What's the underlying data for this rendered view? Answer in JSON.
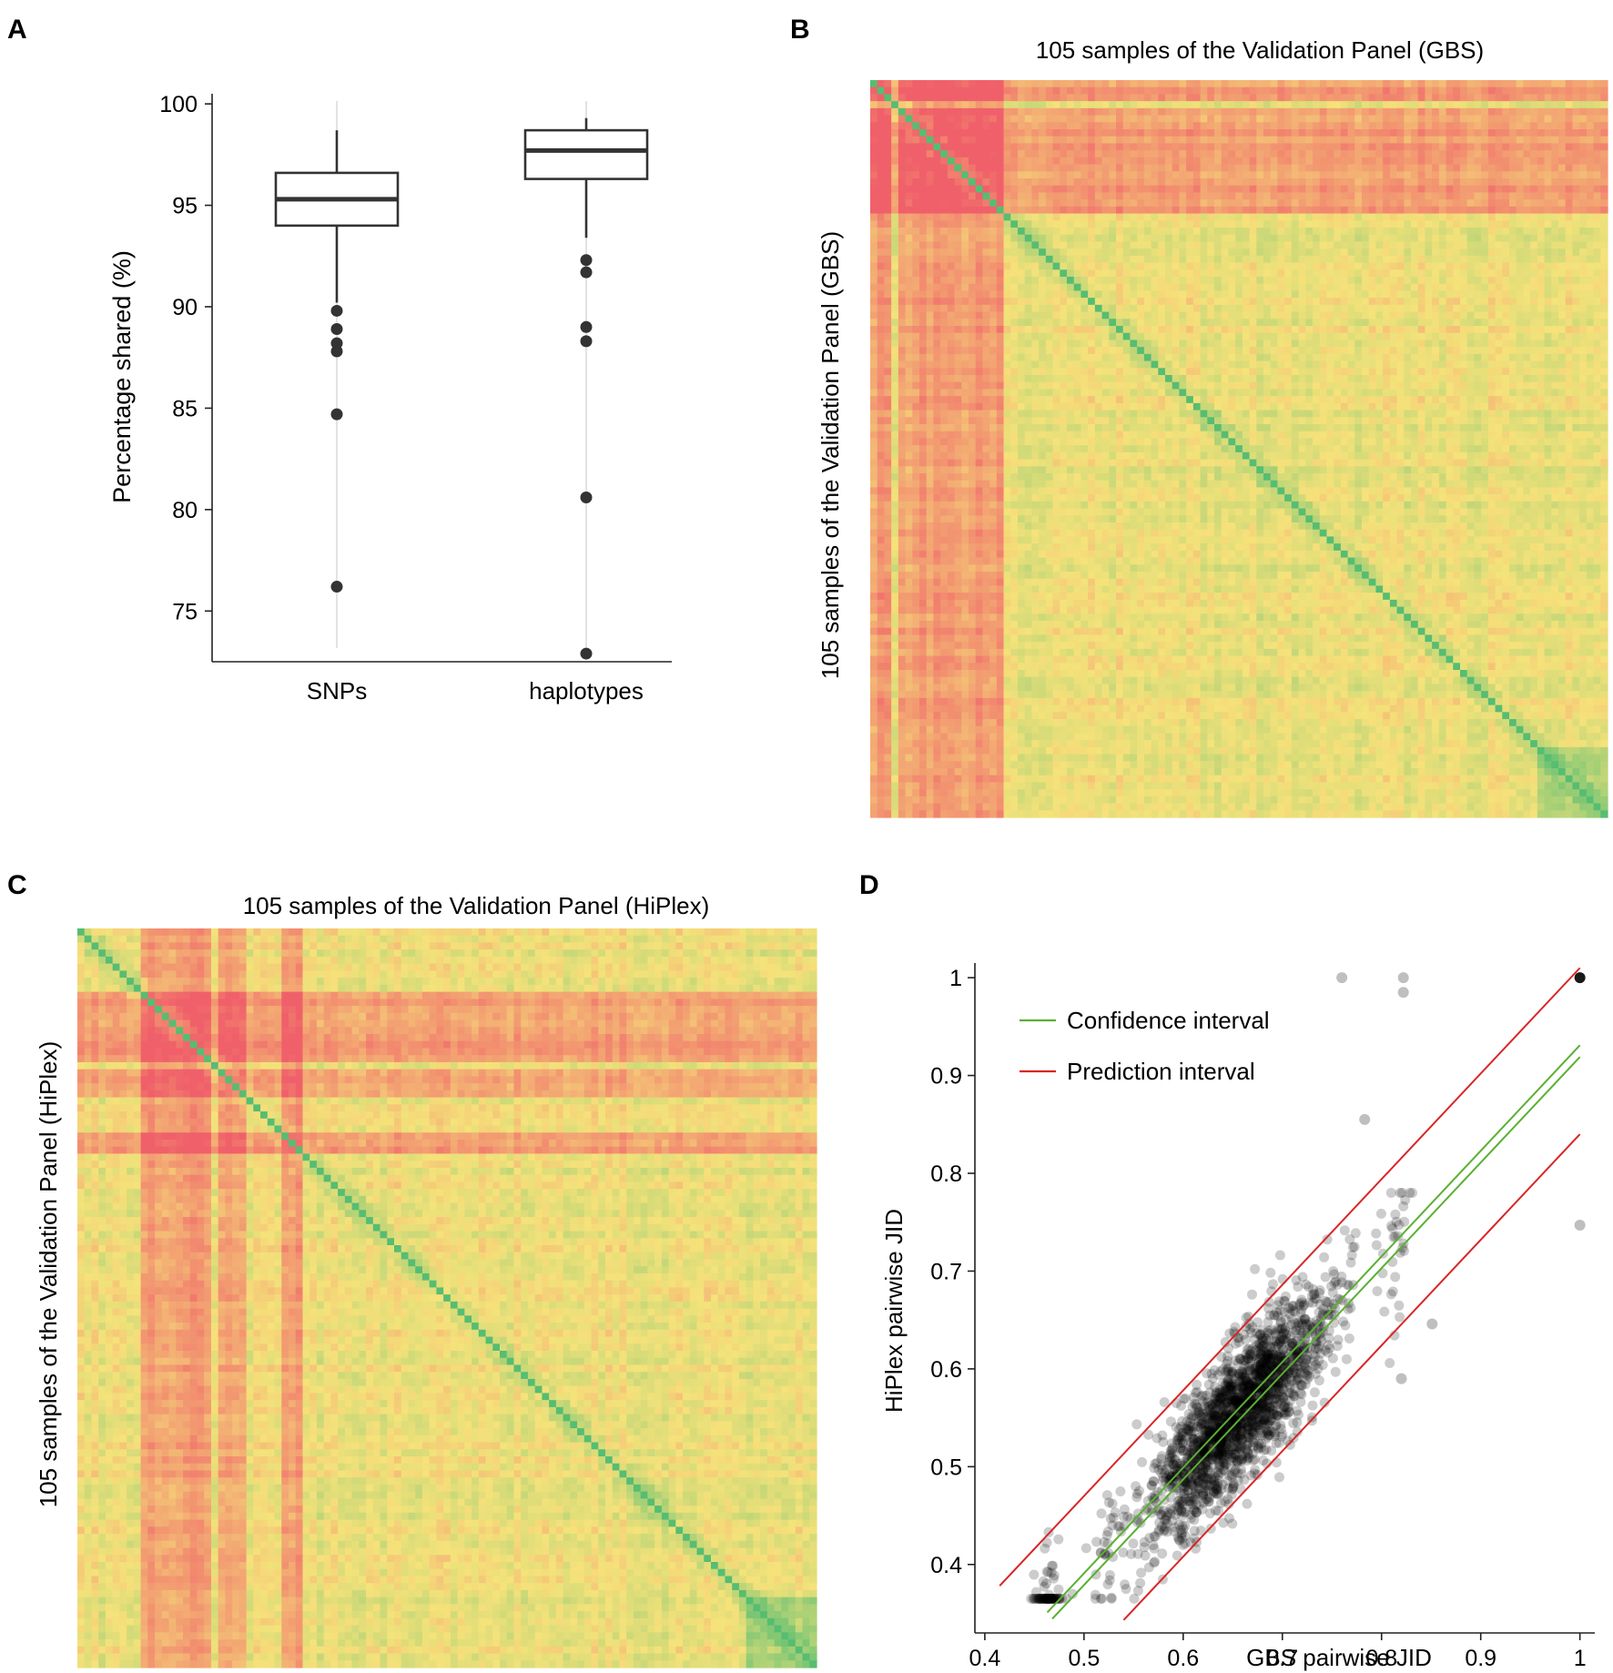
{
  "panel_labels": [
    "A",
    "B",
    "C",
    "D"
  ],
  "colors": {
    "axis": "#222222",
    "box": "#333333",
    "whisker_bg": "#e3e3e3",
    "heat_low": "#f0606a",
    "heat_mid": "#f5e27a",
    "heat_high": "#56bd72",
    "points": "#000000",
    "confidence": "#5ab031",
    "prediction": "#d92525"
  },
  "chart_data": [
    {
      "id": "A",
      "type": "box",
      "title": "",
      "ylabel": "Percentage shared (%)",
      "xlabel": "",
      "ylim": [
        72.5,
        100.5
      ],
      "yticks": [
        75,
        80,
        85,
        90,
        95,
        100
      ],
      "categories": [
        "SNPs",
        "haplotypes"
      ],
      "boxes": [
        {
          "name": "SNPs",
          "q1": 94.0,
          "median": 95.3,
          "q3": 96.6,
          "whisker_low": 90.2,
          "whisker_high": 98.7,
          "outliers": [
            89.8,
            88.9,
            88.2,
            87.8,
            84.7,
            76.2
          ]
        },
        {
          "name": "haplotypes",
          "q1": 96.3,
          "median": 97.7,
          "q3": 98.7,
          "whisker_low": 93.4,
          "whisker_high": 99.3,
          "outliers": [
            92.3,
            91.7,
            89.0,
            88.3,
            80.6,
            72.9
          ]
        }
      ]
    },
    {
      "id": "B",
      "type": "heatmap",
      "title": "105 samples of the Validation Panel (GBS)",
      "ylabel": "105 samples of the Validation Panel (GBS)",
      "n": 105,
      "low_samples": [
        0,
        1,
        2,
        4,
        5,
        6,
        7,
        8,
        9,
        10,
        11,
        12,
        13,
        14,
        15,
        16,
        17,
        18
      ]
    },
    {
      "id": "C",
      "type": "heatmap",
      "title": "105 samples of the Validation Panel (HiPlex)",
      "ylabel": "105 samples of the Validation Panel (HiPlex)",
      "n": 105,
      "low_samples": [
        9,
        10,
        11,
        12,
        13,
        14,
        15,
        16,
        17,
        18,
        20,
        21,
        22,
        23,
        29,
        30,
        31
      ]
    },
    {
      "id": "D",
      "type": "scatter",
      "title": "",
      "xlabel": "GBS pairwise JID",
      "ylabel": "HiPlex pairwise JID",
      "xlim": [
        0.39,
        1.015
      ],
      "ylim": [
        0.33,
        1.015
      ],
      "xticks": [
        0.4,
        0.5,
        0.6,
        0.7,
        0.8,
        0.9,
        1.0
      ],
      "yticks": [
        0.4,
        0.5,
        0.6,
        0.7,
        0.8,
        0.9,
        1.0
      ],
      "legend": [
        {
          "label": "Confidence interval",
          "color": "#5ab031"
        },
        {
          "label": "Prediction interval",
          "color": "#d92525"
        }
      ],
      "legend_position": "top-left",
      "regression": {
        "slope": 1.08,
        "intercept": -0.155
      },
      "confidence_half_width": 0.006,
      "prediction_half_width": 0.085,
      "fit_x_range": [
        0.415,
        1.0
      ],
      "point_count": 2000,
      "notable_points": [
        [
          0.76,
          1.0
        ],
        [
          0.822,
          1.0
        ],
        [
          0.822,
          0.985
        ],
        [
          1.0,
          1.0
        ],
        [
          1.0,
          0.747
        ],
        [
          0.82,
          0.59
        ],
        [
          0.851,
          0.646
        ],
        [
          0.783,
          0.855
        ]
      ]
    }
  ]
}
